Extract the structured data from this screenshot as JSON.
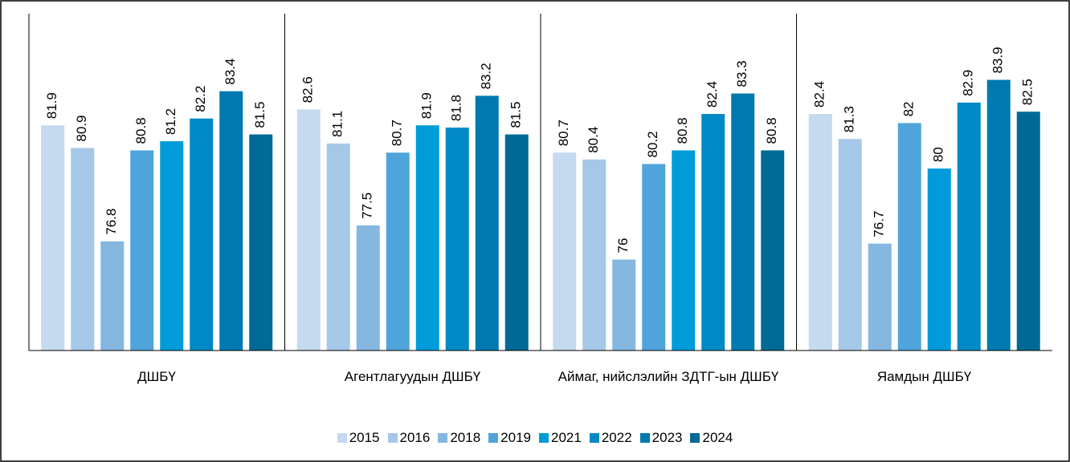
{
  "chart_data": {
    "type": "bar",
    "categories": [
      "ДШБҮ",
      "Агентлагуудын ДШБҮ",
      "Аймаг, нийслэлийн ЗДТГ-ын ДШБҮ",
      "Яамдын ДШБҮ"
    ],
    "series": [
      {
        "name": "2015",
        "color": "#c5d9ef",
        "values": [
          81.9,
          82.6,
          80.7,
          82.4
        ]
      },
      {
        "name": "2016",
        "color": "#a6c8e8",
        "values": [
          80.9,
          81.1,
          80.4,
          81.3
        ]
      },
      {
        "name": "2018",
        "color": "#85b7e0",
        "values": [
          76.8,
          77.5,
          76,
          76.7
        ]
      },
      {
        "name": "2019",
        "color": "#4fa5db",
        "values": [
          80.8,
          80.7,
          80.2,
          82
        ]
      },
      {
        "name": "2021",
        "color": "#009bd8",
        "values": [
          81.2,
          81.9,
          80.8,
          80
        ]
      },
      {
        "name": "2022",
        "color": "#0089c4",
        "values": [
          82.2,
          81.8,
          82.4,
          82.9
        ]
      },
      {
        "name": "2023",
        "color": "#0079b0",
        "values": [
          83.4,
          83.2,
          83.3,
          83.9
        ]
      },
      {
        "name": "2024",
        "color": "#006a96",
        "values": [
          81.5,
          81.5,
          80.8,
          82.5
        ]
      }
    ],
    "ylim": [
      72,
      86
    ],
    "legend": "bottom"
  }
}
